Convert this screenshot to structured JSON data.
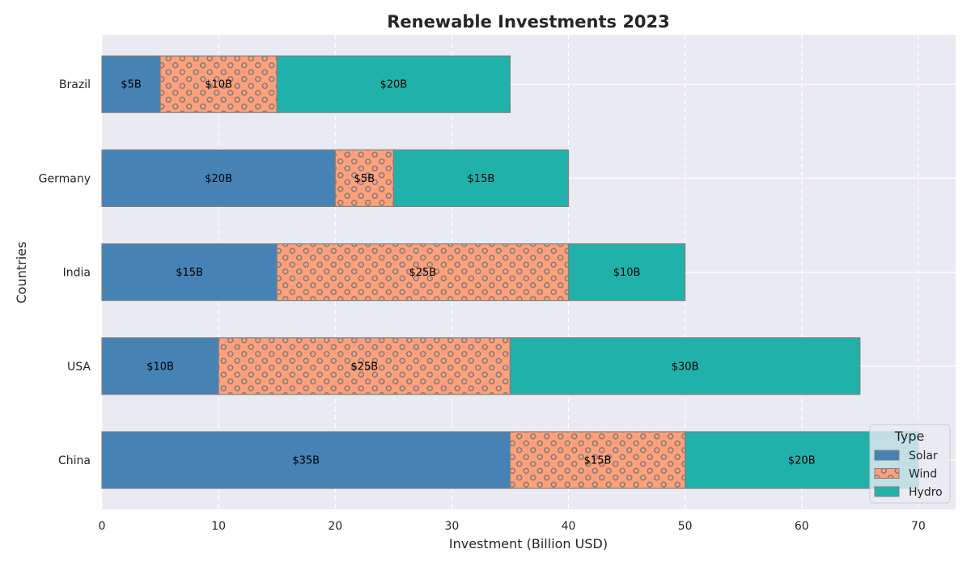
{
  "chart_data": {
    "type": "bar",
    "orientation": "horizontal",
    "stacked": true,
    "title": "Renewable Investments 2023",
    "xlabel": "Investment (Billion USD)",
    "ylabel": "Countries",
    "categories": [
      "China",
      "USA",
      "India",
      "Germany",
      "Brazil"
    ],
    "series": [
      {
        "name": "Solar",
        "values": [
          35,
          10,
          15,
          20,
          5
        ],
        "labels": [
          "$35B",
          "$10B",
          "$15B",
          "$20B",
          "$5B"
        ],
        "color": "#4682b4",
        "pattern": "none"
      },
      {
        "name": "Wind",
        "values": [
          15,
          25,
          25,
          5,
          10
        ],
        "labels": [
          "$15B",
          "$25B",
          "$25B",
          "$5B",
          "$10B"
        ],
        "color": "#ffa07a",
        "pattern": "circles"
      },
      {
        "name": "Hydro",
        "values": [
          20,
          30,
          10,
          15,
          20
        ],
        "labels": [
          "$20B",
          "$30B",
          "$10B",
          "$15B",
          "$20B"
        ],
        "color": "#20b2aa",
        "pattern": "none"
      }
    ],
    "xlim": [
      0,
      73.2
    ],
    "xticks": [
      0,
      10,
      20,
      30,
      40,
      50,
      60,
      70
    ],
    "grid": true,
    "legend": {
      "title": "Type",
      "position": "lower-right"
    },
    "colors": {
      "plot_background": "#eaeaf2",
      "grid": "#ffffff",
      "bar_edge": "#808080",
      "hatch": "#808080"
    }
  }
}
